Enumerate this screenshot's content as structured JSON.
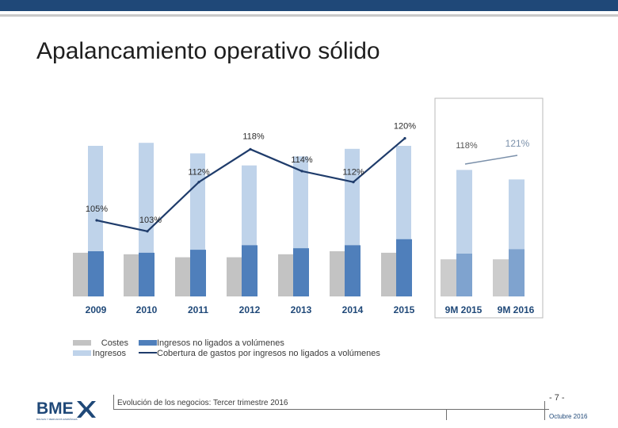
{
  "page": {
    "title": "Apalancamiento operativo sólido",
    "footer": "Evolución de los negocios: Tercer trimestre 2016",
    "page_number": "- 7 -",
    "date": "Octubre 2016",
    "logo_text": "BME",
    "logo_tagline": "BOLSAS Y MERCADOS ESPAÑOLES"
  },
  "colors": {
    "costes": "#c3c3c3",
    "ingresos": "#bfd3ea",
    "ingresos_no_ligados": "#4f7fbb",
    "cobertura_line": "#1f3c6b",
    "header": "#1f4878"
  },
  "legend": {
    "costes": "Costes",
    "ingresos": "Ingresos",
    "ingresos_no_ligados": "Ingresos no ligados a volúmenes",
    "cobertura": "Cobertura de gastos por ingresos no ligados a volúmenes"
  },
  "chart_data": {
    "type": "bar",
    "title": "Apalancamiento operativo sólido",
    "xlabel": "",
    "ylabel": "",
    "ylim": [
      0,
      100
    ],
    "categories": [
      "2009",
      "2010",
      "2011",
      "2012",
      "2013",
      "2014",
      "2015"
    ],
    "series": [
      {
        "name": "Costes",
        "values": [
          29,
          28,
          26,
          26,
          28,
          30,
          29
        ]
      },
      {
        "name": "Ingresos",
        "values": [
          100,
          102,
          95,
          87,
          93,
          98,
          100
        ]
      },
      {
        "name": "Ingresos no ligados a volúmenes",
        "values": [
          30,
          29,
          31,
          34,
          32,
          34,
          38
        ]
      }
    ],
    "line": {
      "name": "Cobertura de gastos por ingresos no ligados a volúmenes",
      "labels": [
        "105%",
        "103%",
        "112%",
        "118%",
        "114%",
        "112%",
        "120%"
      ],
      "values": [
        105,
        103,
        112,
        118,
        114,
        112,
        120
      ]
    },
    "period": {
      "categories": [
        "9M 2015",
        "9M 2016"
      ],
      "costes": [
        29,
        29
      ],
      "ingresos": [
        80,
        74
      ],
      "ingresos_no_ligados": [
        29,
        32
      ],
      "labels": [
        "118%",
        "121%"
      ],
      "values": [
        118,
        121
      ]
    }
  }
}
